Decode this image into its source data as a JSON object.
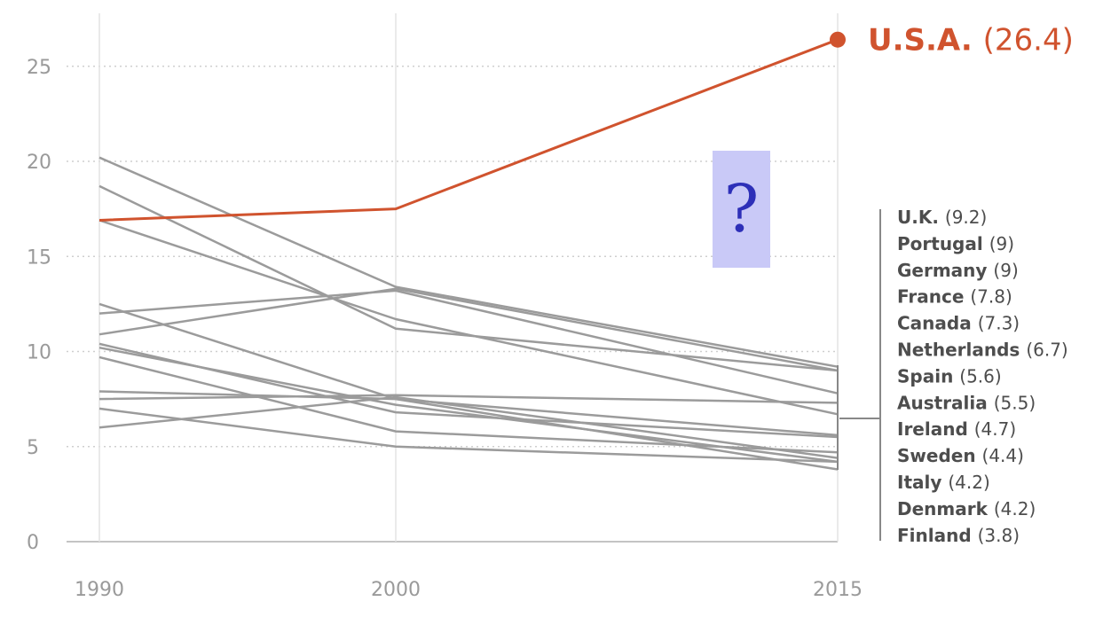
{
  "chart_data": {
    "type": "line",
    "title": "",
    "xlabel": "",
    "ylabel": "",
    "x": [
      "1990",
      "2000",
      "2015"
    ],
    "ylim": [
      0,
      25
    ],
    "yticks": [
      0,
      5,
      10,
      15,
      20,
      25
    ],
    "grid": "horizontal dotted",
    "highlight_color": "#d0532e",
    "line_color": "#9b9b9b",
    "series": [
      {
        "name": "U.S.A.",
        "label": "U.S.A.",
        "value_label": "(26.4)",
        "values": [
          16.9,
          17.5,
          26.4
        ],
        "highlight": true
      },
      {
        "name": "U.K.",
        "label": "U.K.",
        "value_label": "(9.2)",
        "values": [
          20.2,
          13.4,
          9.2
        ]
      },
      {
        "name": "Portugal",
        "label": "Portugal",
        "value_label": "(9)",
        "values": [
          10.9,
          13.3,
          9.0
        ]
      },
      {
        "name": "Germany",
        "label": "Germany",
        "value_label": "(9)",
        "values": [
          18.7,
          11.2,
          9.0
        ]
      },
      {
        "name": "France",
        "label": "France",
        "value_label": "(7.8)",
        "values": [
          12.0,
          13.2,
          7.8
        ]
      },
      {
        "name": "Canada",
        "label": "Canada",
        "value_label": "(7.3)",
        "values": [
          7.5,
          7.7,
          7.3
        ]
      },
      {
        "name": "Netherlands",
        "label": "Netherlands",
        "value_label": "(6.7)",
        "values": [
          16.9,
          11.7,
          6.7
        ]
      },
      {
        "name": "Spain",
        "label": "Spain",
        "value_label": "(5.6)",
        "values": [
          12.5,
          7.5,
          5.6
        ]
      },
      {
        "name": "Australia",
        "label": "Australia",
        "value_label": "(5.5)",
        "values": [
          10.4,
          6.8,
          5.5
        ]
      },
      {
        "name": "Ireland",
        "label": "Ireland",
        "value_label": "(4.7)",
        "values": [
          9.7,
          5.8,
          4.7
        ]
      },
      {
        "name": "Sweden",
        "label": "Sweden",
        "value_label": "(4.4)",
        "values": [
          6.0,
          7.6,
          4.4
        ]
      },
      {
        "name": "Italy",
        "label": "Italy",
        "value_label": "(4.2)",
        "values": [
          10.2,
          7.2,
          4.2
        ]
      },
      {
        "name": "Denmark",
        "label": "Denmark",
        "value_label": "(4.2)",
        "values": [
          7.0,
          5.0,
          4.2
        ]
      },
      {
        "name": "Finland",
        "label": "Finland",
        "value_label": "(3.8)",
        "values": [
          7.9,
          7.5,
          3.8
        ]
      }
    ]
  },
  "question_mark": "?"
}
